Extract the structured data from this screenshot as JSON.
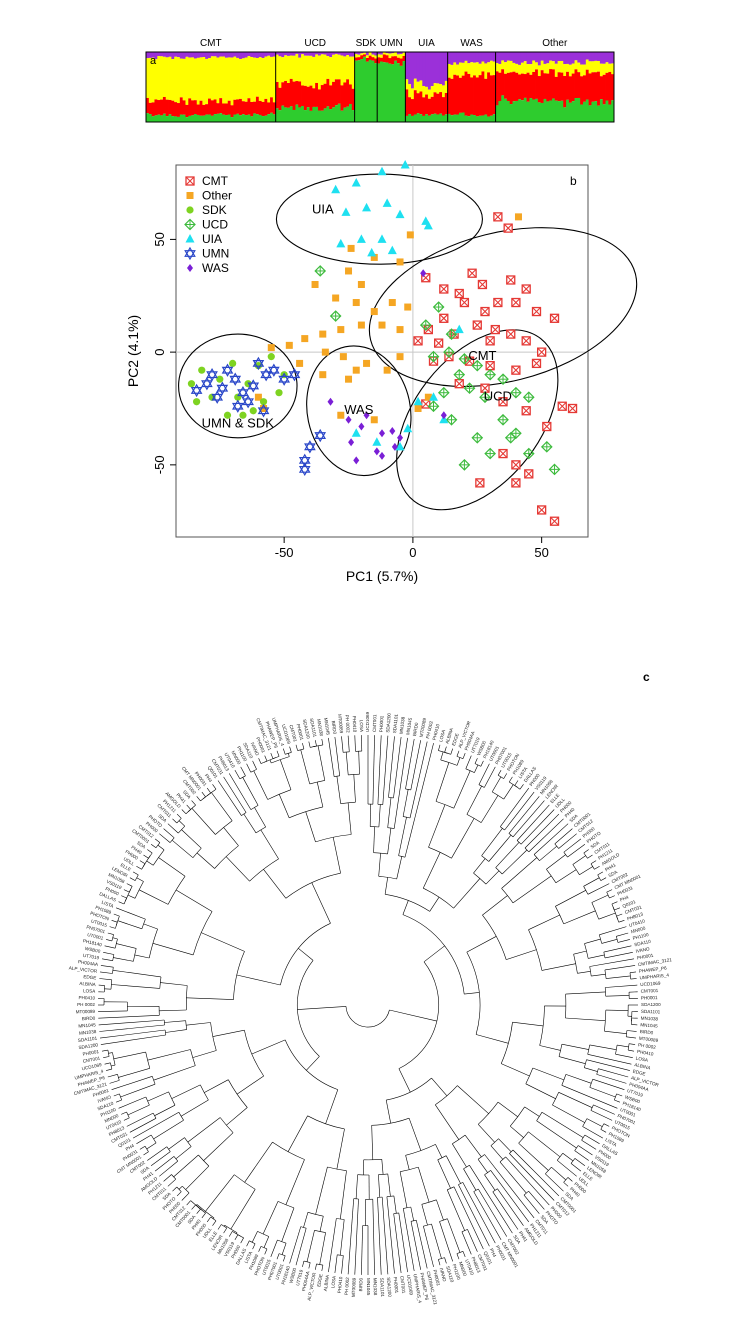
{
  "figure": {
    "panel_labels": {
      "a": "a",
      "b": "b",
      "c": "c"
    }
  },
  "colors": {
    "purple": "#9b30d9",
    "yellow": "#ffff00",
    "red": "#ff0000",
    "green": "#2ecc2e",
    "cmt": "#e53935",
    "other": "#f5a623",
    "sdk": "#7ed321",
    "ucd": "#3dbb3d",
    "uia": "#1ee0f0",
    "umn": "#2946c8",
    "was": "#7a1fd6"
  },
  "chart_data": [
    {
      "type": "bar",
      "subtype": "stacked-structure",
      "panel": "a",
      "title": "",
      "groups": [
        "CMT",
        "UCD",
        "SDK",
        "UMN",
        "UIA",
        "WAS",
        "Other"
      ],
      "group_counts": [
        46,
        28,
        8,
        10,
        15,
        17,
        42
      ],
      "clusters": [
        "purple",
        "yellow",
        "red",
        "green"
      ],
      "group_mean_proportions": {
        "CMT": [
          0.08,
          0.62,
          0.2,
          0.1
        ],
        "UCD": [
          0.05,
          0.4,
          0.35,
          0.2
        ],
        "SDK": [
          0.02,
          0.03,
          0.05,
          0.9
        ],
        "UMN": [
          0.02,
          0.05,
          0.08,
          0.85
        ],
        "UIA": [
          0.45,
          0.15,
          0.3,
          0.1
        ],
        "WAS": [
          0.15,
          0.2,
          0.55,
          0.1
        ],
        "Other": [
          0.15,
          0.15,
          0.4,
          0.3
        ]
      },
      "ylim": [
        0,
        1
      ]
    },
    {
      "type": "scatter",
      "panel": "b",
      "xlabel": "PC1 (5.7%)",
      "ylabel": "PC2 (4.1%)",
      "xlim": [
        -92,
        68
      ],
      "ylim": [
        -82,
        83
      ],
      "xticks": [
        -50,
        0,
        50
      ],
      "yticks": [
        -50,
        0,
        50
      ],
      "tick_labels_x": [
        "-50",
        "0",
        "50"
      ],
      "tick_labels_y": [
        "-50",
        "0",
        "50"
      ],
      "legend": [
        "CMT",
        "Other",
        "SDK",
        "UCD",
        "UIA",
        "UMN",
        "WAS"
      ],
      "legend_position": "top-left",
      "ellipse_labels": [
        "UIA",
        "CMT",
        "UMN & SDK",
        "WAS",
        "UCD"
      ],
      "ellipses": [
        {
          "label": "UIA",
          "cx": -13,
          "cy": 59,
          "rx": 40,
          "ry": 20,
          "angle": 0
        },
        {
          "label": "CMT",
          "cx": 35,
          "cy": 20,
          "rx": 53,
          "ry": 33,
          "angle": -14
        },
        {
          "label": "UMN & SDK",
          "cx": -68,
          "cy": -15,
          "rx": 23,
          "ry": 23,
          "angle": 0
        },
        {
          "label": "WAS",
          "cx": -21,
          "cy": -26,
          "rx": 20,
          "ry": 29,
          "angle": -12
        },
        {
          "label": "UCD",
          "cx": 25,
          "cy": -30,
          "rx": 40,
          "ry": 28,
          "angle": -52
        }
      ],
      "series": [
        {
          "name": "CMT",
          "points": [
            [
              33,
              60
            ],
            [
              37,
              55
            ],
            [
              23,
              35
            ],
            [
              5,
              33
            ],
            [
              12,
              28
            ],
            [
              18,
              26
            ],
            [
              27,
              30
            ],
            [
              38,
              32
            ],
            [
              44,
              28
            ],
            [
              55,
              15
            ],
            [
              48,
              18
            ],
            [
              40,
              22
            ],
            [
              33,
              22
            ],
            [
              28,
              18
            ],
            [
              20,
              22
            ],
            [
              12,
              15
            ],
            [
              6,
              10
            ],
            [
              2,
              5
            ],
            [
              10,
              4
            ],
            [
              16,
              8
            ],
            [
              25,
              12
            ],
            [
              32,
              10
            ],
            [
              38,
              8
            ],
            [
              44,
              5
            ],
            [
              50,
              0
            ],
            [
              48,
              -5
            ],
            [
              40,
              -8
            ],
            [
              30,
              -6
            ],
            [
              22,
              -4
            ],
            [
              14,
              -2
            ],
            [
              8,
              -4
            ],
            [
              18,
              -14
            ],
            [
              28,
              -16
            ],
            [
              35,
              -22
            ],
            [
              44,
              -26
            ],
            [
              52,
              -33
            ],
            [
              58,
              -24
            ],
            [
              62,
              -25
            ],
            [
              35,
              -45
            ],
            [
              40,
              -50
            ],
            [
              26,
              -58
            ],
            [
              40,
              -58
            ],
            [
              50,
              -70
            ],
            [
              55,
              -75
            ],
            [
              45,
              -54
            ],
            [
              5,
              -23
            ],
            [
              30,
              5
            ]
          ]
        },
        {
          "name": "Other",
          "points": [
            [
              41,
              60
            ],
            [
              -24,
              46
            ],
            [
              -15,
              42
            ],
            [
              -5,
              40
            ],
            [
              -1,
              52
            ],
            [
              -20,
              30
            ],
            [
              -25,
              36
            ],
            [
              -38,
              30
            ],
            [
              -30,
              24
            ],
            [
              -22,
              22
            ],
            [
              -15,
              18
            ],
            [
              -8,
              22
            ],
            [
              -2,
              20
            ],
            [
              -12,
              12
            ],
            [
              -5,
              10
            ],
            [
              -20,
              12
            ],
            [
              -28,
              10
            ],
            [
              -35,
              8
            ],
            [
              -42,
              6
            ],
            [
              -48,
              3
            ],
            [
              -55,
              2
            ],
            [
              -44,
              -5
            ],
            [
              -35,
              -10
            ],
            [
              -25,
              -12
            ],
            [
              -18,
              -5
            ],
            [
              -10,
              -8
            ],
            [
              -5,
              -2
            ],
            [
              -60,
              -20
            ],
            [
              -58,
              -25
            ],
            [
              -28,
              -28
            ],
            [
              -15,
              -30
            ],
            [
              2,
              -25
            ],
            [
              6,
              -20
            ],
            [
              -22,
              -8
            ],
            [
              -34,
              0
            ],
            [
              -27,
              -2
            ]
          ]
        },
        {
          "name": "SDK",
          "points": [
            [
              -86,
              -14
            ],
            [
              -82,
              -8
            ],
            [
              -78,
              -20
            ],
            [
              -75,
              -12
            ],
            [
              -72,
              -28
            ],
            [
              -70,
              -5
            ],
            [
              -68,
              -20
            ],
            [
              -64,
              -14
            ],
            [
              -60,
              -6
            ],
            [
              -58,
              -22
            ],
            [
              -55,
              -2
            ],
            [
              -52,
              -18
            ],
            [
              -50,
              -10
            ],
            [
              -84,
              -22
            ],
            [
              -66,
              -28
            ],
            [
              -62,
              -26
            ]
          ]
        },
        {
          "name": "UCD",
          "points": [
            [
              -36,
              36
            ],
            [
              -30,
              16
            ],
            [
              10,
              20
            ],
            [
              5,
              12
            ],
            [
              15,
              8
            ],
            [
              8,
              -2
            ],
            [
              14,
              0
            ],
            [
              20,
              -3
            ],
            [
              25,
              -6
            ],
            [
              30,
              -10
            ],
            [
              35,
              -12
            ],
            [
              40,
              -18
            ],
            [
              45,
              -20
            ],
            [
              18,
              -10
            ],
            [
              22,
              -16
            ],
            [
              28,
              -20
            ],
            [
              35,
              -30
            ],
            [
              40,
              -36
            ],
            [
              25,
              -38
            ],
            [
              30,
              -45
            ],
            [
              20,
              -50
            ],
            [
              45,
              -45
            ],
            [
              52,
              -42
            ],
            [
              55,
              -52
            ],
            [
              38,
              -38
            ],
            [
              15,
              -30
            ],
            [
              8,
              -24
            ],
            [
              12,
              -18
            ]
          ]
        },
        {
          "name": "UIA",
          "points": [
            [
              -30,
              72
            ],
            [
              -22,
              75
            ],
            [
              -12,
              80
            ],
            [
              -3,
              83
            ],
            [
              -26,
              62
            ],
            [
              -18,
              64
            ],
            [
              -10,
              66
            ],
            [
              -5,
              61
            ],
            [
              5,
              58
            ],
            [
              6,
              56
            ],
            [
              -28,
              48
            ],
            [
              -20,
              50
            ],
            [
              -12,
              50
            ],
            [
              -16,
              44
            ],
            [
              -8,
              45
            ],
            [
              18,
              10
            ],
            [
              8,
              -20
            ],
            [
              2,
              -22
            ],
            [
              12,
              -30
            ],
            [
              -22,
              -36
            ],
            [
              -14,
              -40
            ],
            [
              -5,
              -42
            ],
            [
              -2,
              -34
            ]
          ]
        },
        {
          "name": "UMN",
          "points": [
            [
              -84,
              -17
            ],
            [
              -80,
              -14
            ],
            [
              -78,
              -10
            ],
            [
              -74,
              -16
            ],
            [
              -72,
              -8
            ],
            [
              -69,
              -12
            ],
            [
              -66,
              -18
            ],
            [
              -62,
              -15
            ],
            [
              -60,
              -5
            ],
            [
              -57,
              -10
            ],
            [
              -54,
              -8
            ],
            [
              -50,
              -12
            ],
            [
              -46,
              -10
            ],
            [
              -64,
              -22
            ],
            [
              -68,
              -24
            ],
            [
              -58,
              -26
            ],
            [
              -76,
              -20
            ],
            [
              -40,
              -42
            ],
            [
              -42,
              -48
            ],
            [
              -36,
              -37
            ],
            [
              -42,
              -52
            ]
          ]
        },
        {
          "name": "WAS",
          "points": [
            [
              -32,
              -22
            ],
            [
              -25,
              -30
            ],
            [
              -20,
              -33
            ],
            [
              -12,
              -36
            ],
            [
              -7,
              -42
            ],
            [
              -5,
              -38
            ],
            [
              -14,
              -44
            ],
            [
              -24,
              -40
            ],
            [
              -8,
              -35
            ],
            [
              -18,
              -28
            ],
            [
              4,
              35
            ],
            [
              12,
              -28
            ],
            [
              -12,
              -46
            ],
            [
              -22,
              -48
            ]
          ]
        }
      ]
    },
    {
      "type": "table",
      "subtype": "circular-dendrogram",
      "panel": "c",
      "leaf_count": 256,
      "leaf_labels_top": [
        "UCD1069",
        "CMT001",
        "PH0001",
        "SDA1200",
        "SDA1101",
        "MN1038",
        "MN1045",
        "BIRD0",
        "MT00089",
        "PH 0002",
        "PH0410"
      ],
      "leaf_labels_right": [
        "LOSA",
        "ALBINA",
        "EDGE",
        "ALP_VICTOR",
        "PH004AA",
        "UT7019",
        "WSB00",
        "PH18140",
        "UT0001",
        "PH07001",
        "UT0015",
        "PHOTON",
        "PH1089",
        "LISTA",
        "DALLAS",
        "PH000",
        "VS0119",
        "MN1058",
        "LENOIR",
        "ELLE",
        "UDLL",
        "PH000",
        "PH40",
        "SDA"
      ],
      "leaf_labels_bottom": [
        "CMT0001",
        "CMT012",
        "PH000",
        "PHOTO",
        "SDA",
        "CMT011",
        "PH1211",
        "AMGOLD",
        "PH41",
        "SDA",
        "CMT002"
      ],
      "leaf_labels_left": [
        "CMT MN0001",
        "PH0031",
        "PH4",
        "Q0101",
        "CMT031",
        "PH8013",
        "UT0410",
        "MN000",
        "PH1100",
        "SDA110",
        "IVANO",
        "PH0001"
      ],
      "annotation_labels": [
        "CMTIMAC_3121",
        "PHAWEP_P6",
        "UMPHARIS_4"
      ]
    }
  ]
}
